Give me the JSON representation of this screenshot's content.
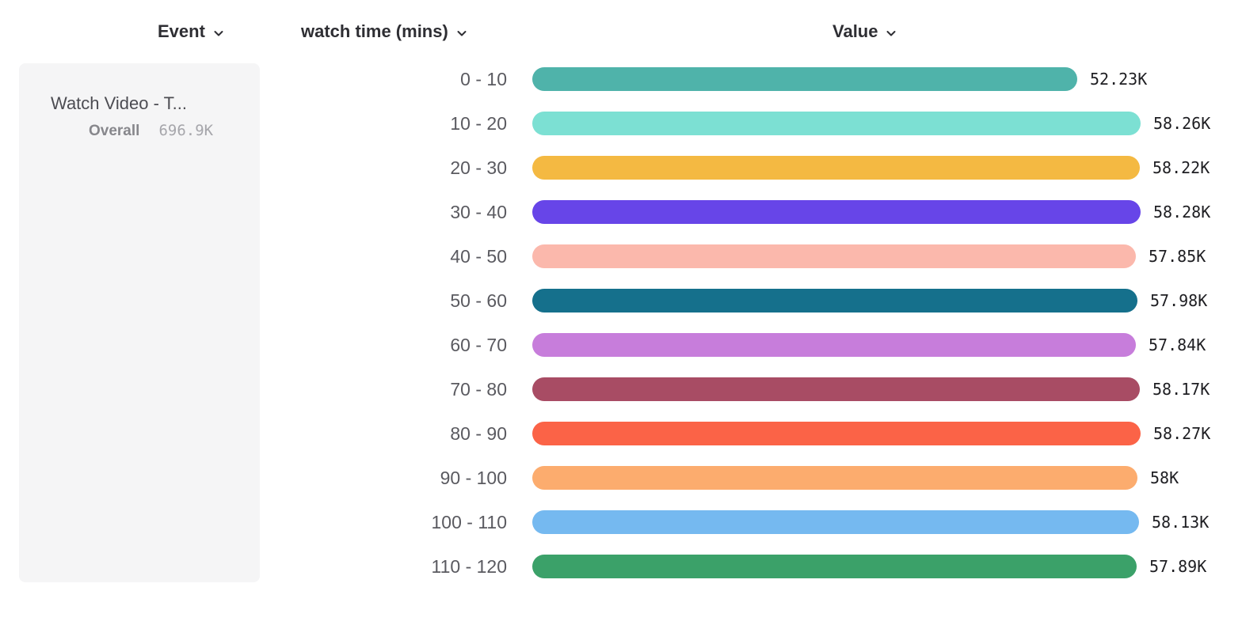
{
  "headers": {
    "event": "Event",
    "breakdown": "watch time (mins)",
    "value": "Value"
  },
  "event_card": {
    "title": "Watch Video - T...",
    "overall_label": "Overall",
    "overall_value": "696.9K"
  },
  "icons": {
    "chevron_down": "chevron-down"
  },
  "chart_data": {
    "type": "bar",
    "orientation": "horizontal",
    "title": "",
    "xlabel": "Value",
    "ylabel": "watch time (mins)",
    "grid": false,
    "legend": false,
    "xlim": [
      0,
      58280
    ],
    "categories": [
      "0 - 10",
      "10 - 20",
      "20 - 30",
      "30 - 40",
      "40 - 50",
      "50 - 60",
      "60 - 70",
      "70 - 80",
      "80 - 90",
      "90 - 100",
      "100 - 110",
      "110 - 120"
    ],
    "values": [
      52230,
      58260,
      58220,
      58280,
      57850,
      57980,
      57840,
      58170,
      58270,
      58000,
      58130,
      57890
    ],
    "value_labels": [
      "52.23K",
      "58.26K",
      "58.22K",
      "58.28K",
      "57.85K",
      "57.98K",
      "57.84K",
      "58.17K",
      "58.27K",
      "58K",
      "58.13K",
      "57.89K"
    ],
    "colors": [
      "#4fb3aa",
      "#7ce0d3",
      "#f4b942",
      "#6745e8",
      "#fbb8ac",
      "#15708c",
      "#c77ddb",
      "#a84c64",
      "#fb6347",
      "#fcac6e",
      "#75b9f0",
      "#3ba169"
    ]
  }
}
